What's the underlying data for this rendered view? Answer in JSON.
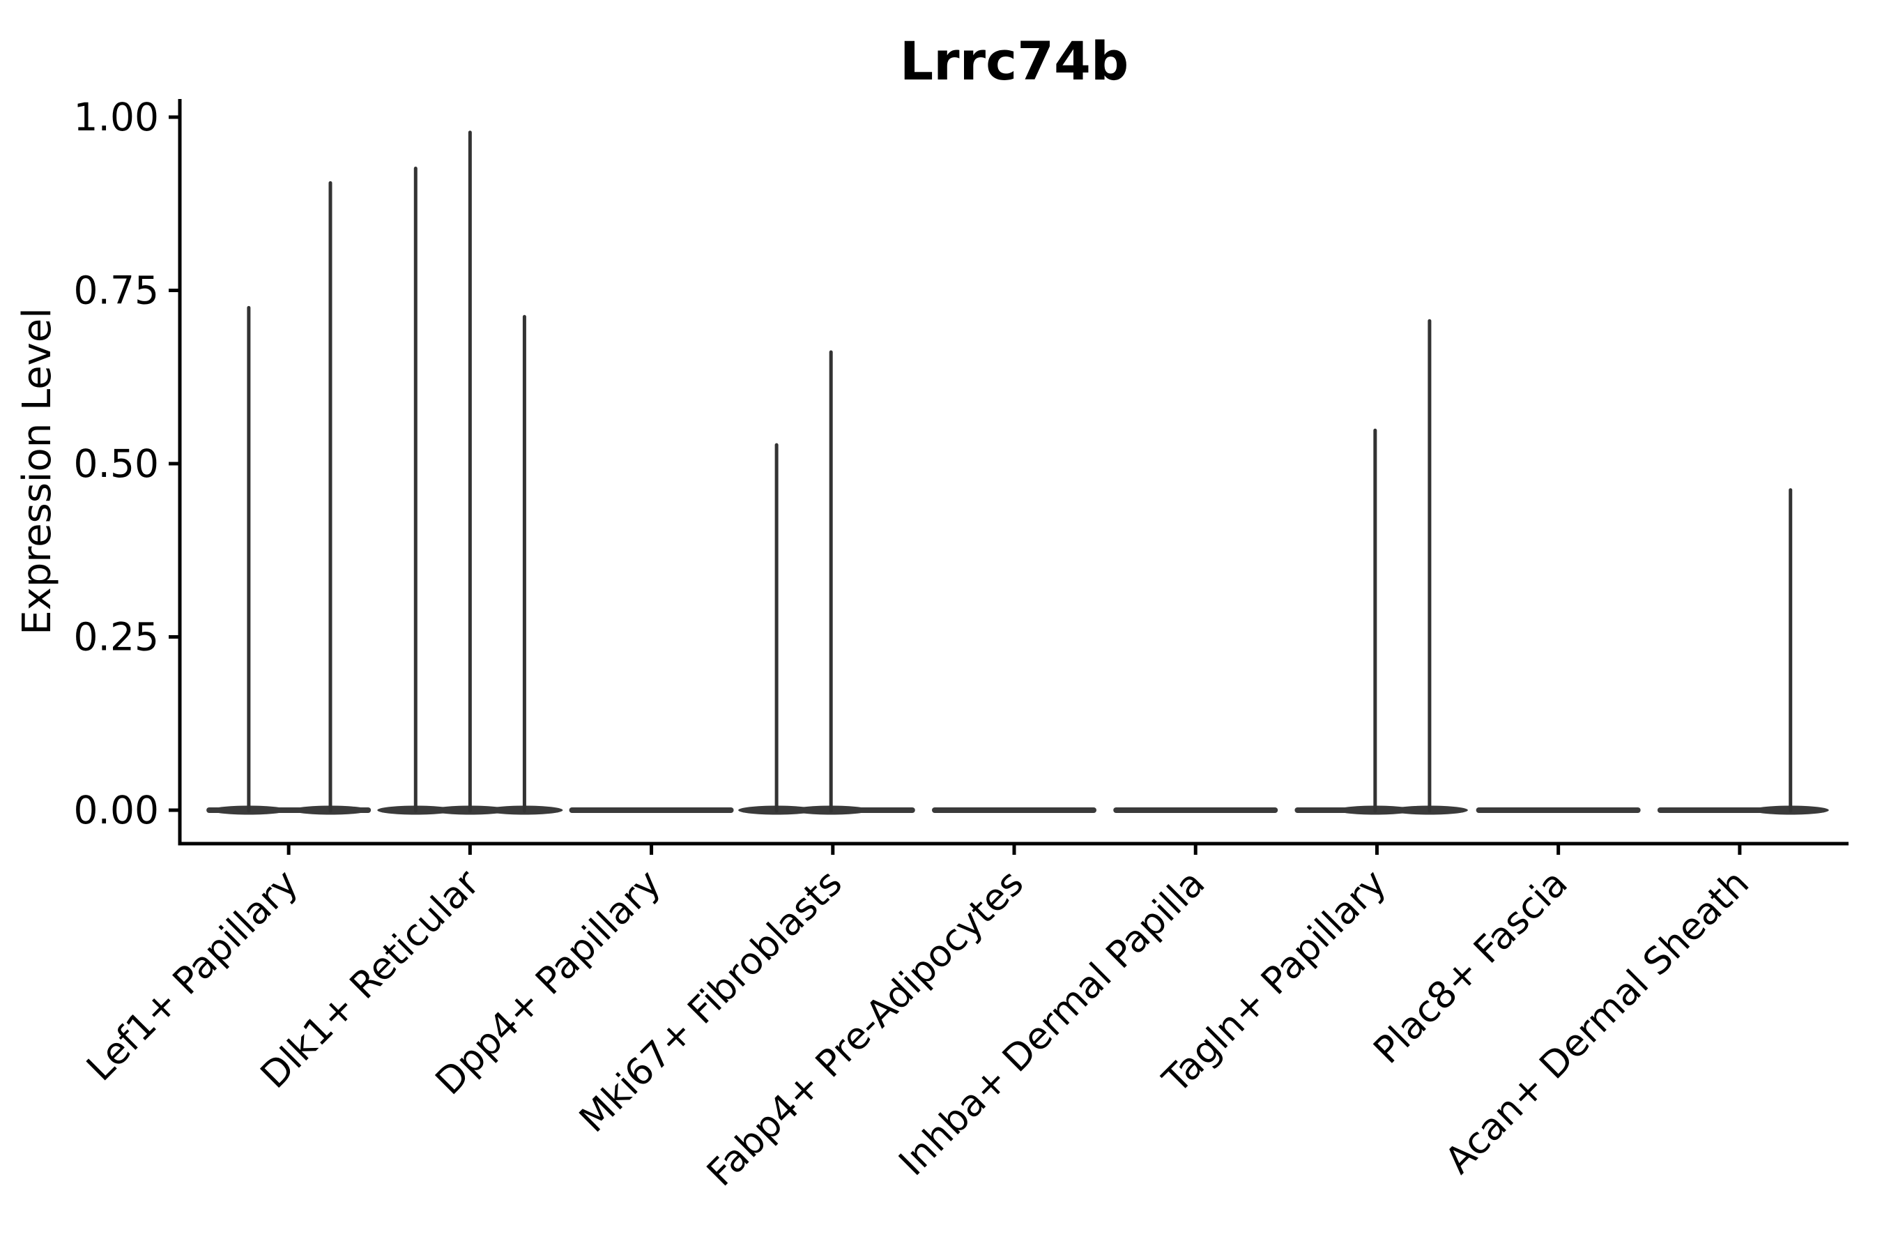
{
  "title": "Lrrc74b",
  "colors": {
    "background": "#ffffff",
    "axis": "#000000",
    "text": "#000000",
    "violin_fill": "#3a3a3a",
    "spike": "#333333"
  },
  "chart_data": {
    "type": "violin",
    "title": "Lrrc74b",
    "xlabel": "",
    "ylabel": "Expression Level",
    "ylim": [
      -0.05,
      1.03
    ],
    "grid": false,
    "legend": "none",
    "x_tick_rotation_deg": 45,
    "y_ticks": {
      "values": [
        0,
        0.25,
        0.5,
        0.75,
        1.0
      ],
      "labels": [
        "0.00",
        "0.25",
        "0.50",
        "0.75",
        "1.00"
      ]
    },
    "categories": [
      "Lef1+ Papillary",
      "Dlk1+ Reticular",
      "Dpp4+ Papillary",
      "Mki67+ Fibroblasts",
      "Fabp4+ Pre-Adipocytes",
      "Inhba+ Dermal Papilla",
      "Tagln+ Papillary",
      "Plac8+ Fascia",
      "Acan+ Dermal Sheath"
    ],
    "series": [
      {
        "name": "Lef1+ Papillary",
        "bulk_value": 0.0,
        "spikes": [
          {
            "value": 0.725,
            "x_offset": -0.22
          },
          {
            "value": 0.905,
            "x_offset": 0.23
          }
        ]
      },
      {
        "name": "Dlk1+ Reticular",
        "bulk_value": 0.0,
        "spikes": [
          {
            "value": 0.926,
            "x_offset": -0.3
          },
          {
            "value": 0.978,
            "x_offset": 0.0
          },
          {
            "value": 0.712,
            "x_offset": 0.3
          }
        ]
      },
      {
        "name": "Dpp4+ Papillary",
        "bulk_value": 0.0,
        "spikes": []
      },
      {
        "name": "Mki67+ Fibroblasts",
        "bulk_value": 0.0,
        "spikes": [
          {
            "value": 0.527,
            "x_offset": -0.31
          },
          {
            "value": 0.661,
            "x_offset": -0.01
          }
        ]
      },
      {
        "name": "Fabp4+ Pre-Adipocytes",
        "bulk_value": 0.0,
        "spikes": []
      },
      {
        "name": "Inhba+ Dermal Papilla",
        "bulk_value": 0.0,
        "spikes": []
      },
      {
        "name": "Tagln+ Papillary",
        "bulk_value": 0.0,
        "spikes": [
          {
            "value": 0.548,
            "x_offset": -0.01
          },
          {
            "value": 0.706,
            "x_offset": 0.29
          }
        ]
      },
      {
        "name": "Plac8+ Fascia",
        "bulk_value": 0.0,
        "spikes": []
      },
      {
        "name": "Acan+ Dermal Sheath",
        "bulk_value": 0.0,
        "spikes": [
          {
            "value": 0.462,
            "x_offset": 0.28
          }
        ]
      }
    ]
  }
}
